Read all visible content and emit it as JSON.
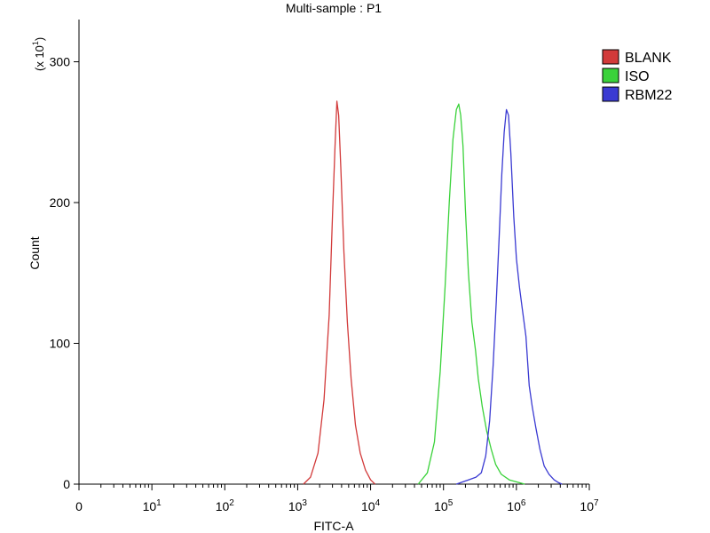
{
  "chart_data": {
    "type": "line",
    "title": "Multi-sample : P1",
    "xlabel": "FITC-A",
    "ylabel": "Count",
    "y_multiplier_label": "(x 10",
    "y_multiplier_exp": "1",
    "y_multiplier_close": ")",
    "x_scale": "log",
    "x_range": [
      0,
      10000000
    ],
    "ylim": [
      0,
      330
    ],
    "x_ticks": [
      {
        "value": 0,
        "base": "0",
        "exp": ""
      },
      {
        "value": 10,
        "base": "10",
        "exp": "1"
      },
      {
        "value": 100,
        "base": "10",
        "exp": "2"
      },
      {
        "value": 1000,
        "base": "10",
        "exp": "3"
      },
      {
        "value": 10000,
        "base": "10",
        "exp": "4"
      },
      {
        "value": 100000,
        "base": "10",
        "exp": "5"
      },
      {
        "value": 1000000,
        "base": "10",
        "exp": "6"
      },
      {
        "value": 10000000,
        "base": "10",
        "exp": "7"
      }
    ],
    "y_ticks": [
      0,
      100,
      200,
      300
    ],
    "grid": false,
    "legend_position": "right",
    "series": [
      {
        "name": "BLANK",
        "color": "#d23a3a",
        "points": [
          [
            1200,
            0
          ],
          [
            1500,
            5
          ],
          [
            1900,
            22
          ],
          [
            2300,
            60
          ],
          [
            2700,
            120
          ],
          [
            3000,
            190
          ],
          [
            3250,
            240
          ],
          [
            3450,
            272
          ],
          [
            3650,
            262
          ],
          [
            3900,
            225
          ],
          [
            4300,
            165
          ],
          [
            4800,
            115
          ],
          [
            5400,
            75
          ],
          [
            6200,
            42
          ],
          [
            7200,
            22
          ],
          [
            8500,
            10
          ],
          [
            10000,
            3
          ],
          [
            11500,
            0
          ]
        ]
      },
      {
        "name": "ISO",
        "color": "#3ad23a",
        "points": [
          [
            45000,
            0
          ],
          [
            60000,
            8
          ],
          [
            75000,
            30
          ],
          [
            90000,
            80
          ],
          [
            105000,
            140
          ],
          [
            120000,
            200
          ],
          [
            135000,
            245
          ],
          [
            150000,
            266
          ],
          [
            162000,
            270
          ],
          [
            172000,
            262
          ],
          [
            185000,
            240
          ],
          [
            200000,
            195
          ],
          [
            220000,
            150
          ],
          [
            245000,
            115
          ],
          [
            275000,
            95
          ],
          [
            300000,
            75
          ],
          [
            340000,
            55
          ],
          [
            390000,
            38
          ],
          [
            450000,
            25
          ],
          [
            520000,
            14
          ],
          [
            620000,
            7
          ],
          [
            800000,
            3
          ],
          [
            1100000,
            1
          ],
          [
            1300000,
            0
          ]
        ]
      },
      {
        "name": "RBM22",
        "color": "#3a3ad2",
        "points": [
          [
            150000,
            0
          ],
          [
            220000,
            3
          ],
          [
            280000,
            5
          ],
          [
            330000,
            8
          ],
          [
            380000,
            20
          ],
          [
            430000,
            45
          ],
          [
            480000,
            85
          ],
          [
            530000,
            130
          ],
          [
            580000,
            175
          ],
          [
            630000,
            220
          ],
          [
            680000,
            250
          ],
          [
            730000,
            266
          ],
          [
            780000,
            262
          ],
          [
            840000,
            235
          ],
          [
            920000,
            190
          ],
          [
            1000000,
            160
          ],
          [
            1100000,
            140
          ],
          [
            1200000,
            125
          ],
          [
            1350000,
            105
          ],
          [
            1500000,
            70
          ],
          [
            1650000,
            55
          ],
          [
            1850000,
            40
          ],
          [
            2100000,
            25
          ],
          [
            2400000,
            13
          ],
          [
            2800000,
            7
          ],
          [
            3300000,
            3
          ],
          [
            3800000,
            1
          ],
          [
            4200000,
            0
          ]
        ]
      }
    ]
  }
}
